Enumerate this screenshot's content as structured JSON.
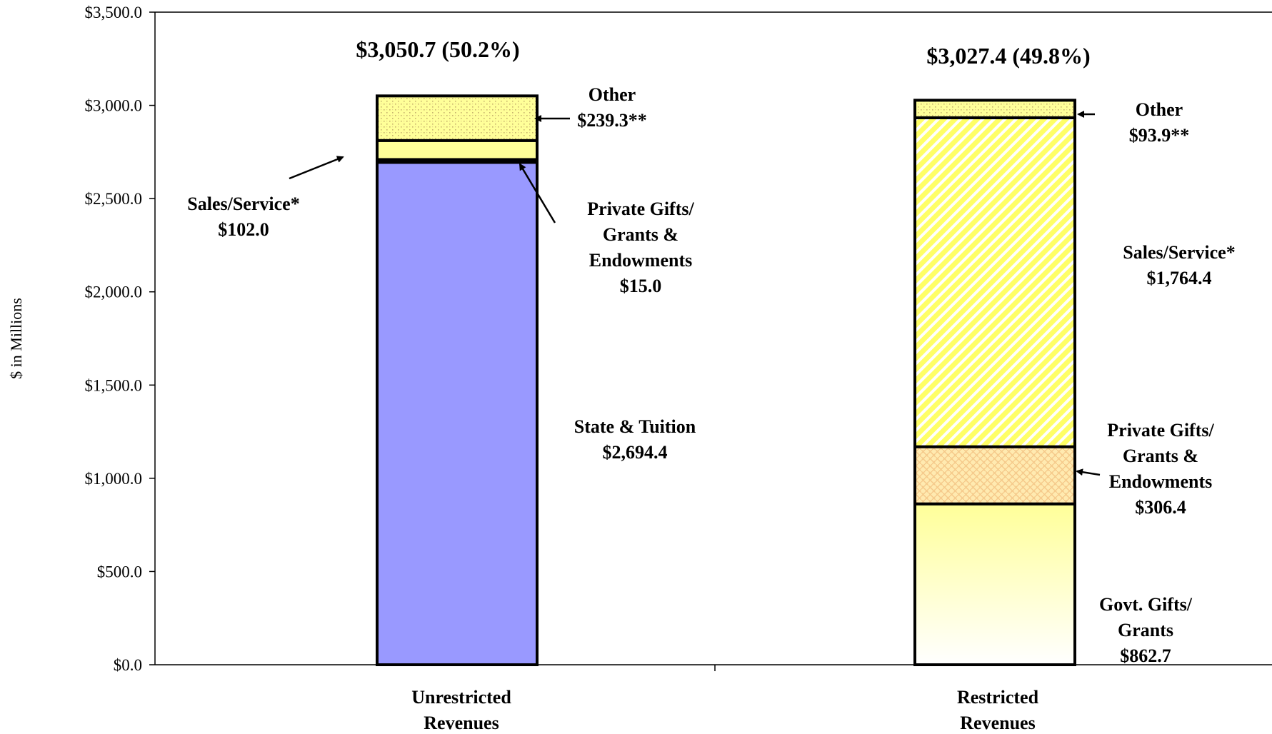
{
  "chart_data": {
    "type": "bar",
    "stacked": true,
    "ylabel": "$ in Millions",
    "ylim": [
      0,
      3500
    ],
    "yticks": [
      "$0.0",
      "$500.0",
      "$1,000.0",
      "$1,500.0",
      "$2,000.0",
      "$2,500.0",
      "$3,000.0",
      "$3,500.0"
    ],
    "categories": [
      "Unrestricted Revenues",
      "Restricted Revenues"
    ],
    "category_label_lines": [
      [
        "Unrestricted",
        "Revenues"
      ],
      [
        "Restricted",
        "Revenues"
      ]
    ],
    "totals": [
      "$3,050.7 (50.2%)",
      "$3,027.4 (49.8%)"
    ],
    "bars": [
      {
        "category": "Unrestricted Revenues",
        "segments": [
          {
            "name": "State & Tuition",
            "value": 2694.4,
            "color": "#9999ff",
            "pattern": "solid",
            "label_lines": [
              "State & Tuition",
              "$2,694.4"
            ]
          },
          {
            "name": "Private Gifts/ Grants & Endowments",
            "value": 15.0,
            "color": "#000000",
            "pattern": "solid",
            "label_lines": [
              "Private Gifts/",
              "Grants &",
              "Endowments",
              "$15.0"
            ]
          },
          {
            "name": "Sales/Service*",
            "value": 102.0,
            "color": "#ffff99",
            "pattern": "solid",
            "label_lines": [
              "Sales/Service*",
              "$102.0"
            ]
          },
          {
            "name": "Other",
            "value": 239.3,
            "color": "#ffff99",
            "pattern": "dots",
            "label_lines": [
              "Other",
              "$239.3**"
            ]
          }
        ]
      },
      {
        "category": "Restricted Revenues",
        "segments": [
          {
            "name": "Govt. Gifts/ Grants",
            "value": 862.7,
            "color": "#ffff99",
            "pattern": "gradient",
            "label_lines": [
              "Govt. Gifts/",
              "Grants",
              "$862.7"
            ]
          },
          {
            "name": "Private Gifts/ Grants & Endowments",
            "value": 306.4,
            "color": "#ffe0a0",
            "pattern": "weave",
            "label_lines": [
              "Private Gifts/",
              "Grants &",
              "Endowments",
              "$306.4"
            ]
          },
          {
            "name": "Sales/Service*",
            "value": 1764.4,
            "color": "#ffff66",
            "pattern": "diagonal",
            "label_lines": [
              "Sales/Service*",
              "$1,764.4"
            ]
          },
          {
            "name": "Other",
            "value": 93.9,
            "color": "#ffff99",
            "pattern": "dots",
            "label_lines": [
              "Other",
              "$93.9**"
            ]
          }
        ]
      }
    ],
    "grid": false,
    "legend": "none"
  }
}
